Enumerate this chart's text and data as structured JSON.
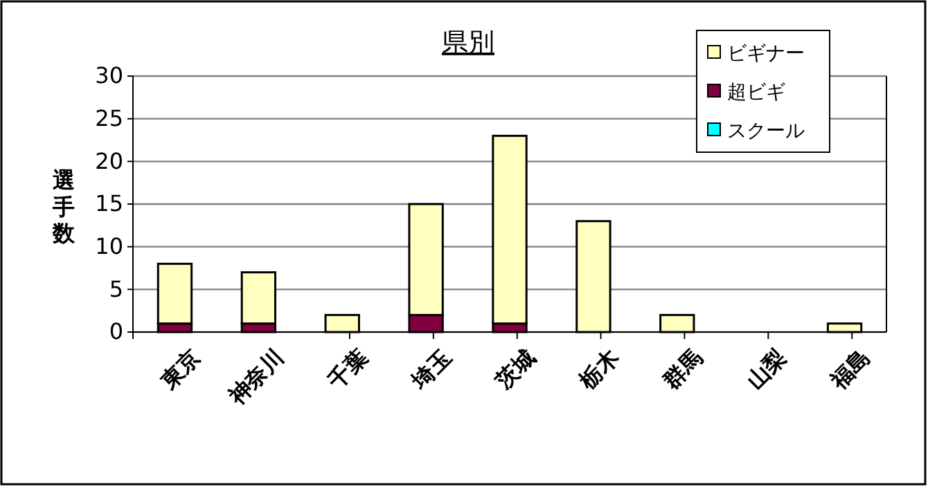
{
  "chart_data": {
    "type": "bar",
    "title": "県別",
    "ylabel": "選手数",
    "stacked": true,
    "categories": [
      "東京",
      "神奈川",
      "千葉",
      "埼玉",
      "茨城",
      "栃木",
      "群馬",
      "山梨",
      "福島"
    ],
    "series": [
      {
        "name": "超ビギ",
        "color": "#800040",
        "values": [
          1,
          1,
          0,
          2,
          1,
          0,
          0,
          0,
          0
        ]
      },
      {
        "name": "ビギナー",
        "color": "#ffffc0",
        "values": [
          7,
          6,
          2,
          13,
          22,
          13,
          2,
          0,
          1
        ]
      },
      {
        "name": "スクール",
        "color": "#00ffff",
        "values": [
          0,
          0,
          0,
          0,
          0,
          0,
          0,
          0,
          0
        ]
      }
    ],
    "ylim": [
      0,
      30
    ],
    "yticks": [
      0,
      5,
      10,
      15,
      20,
      25,
      30
    ],
    "grid": "y",
    "legend": "top right"
  }
}
